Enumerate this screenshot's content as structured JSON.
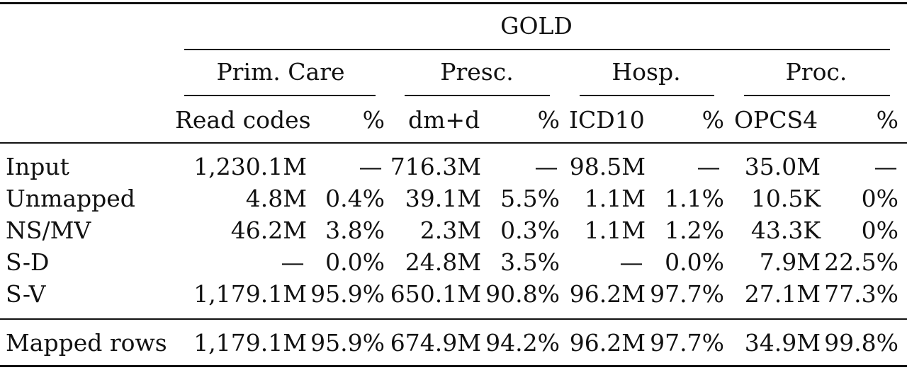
{
  "chart_data": {
    "type": "table",
    "title": "",
    "group_header": "GOLD",
    "source_headers": [
      "Prim. Care",
      "Presc.",
      "Hosp.",
      "Proc."
    ],
    "column_headers": [
      "Read codes",
      "%",
      "dm+d",
      "%",
      "ICD10",
      "%",
      "OPCS4",
      "%"
    ],
    "rows": [
      {
        "label": "Input",
        "cells": [
          "1,230.1M",
          "—",
          "716.3M",
          "—",
          "98.5M",
          "—",
          "35.0M",
          "—"
        ]
      },
      {
        "label": "Unmapped",
        "cells": [
          "4.8M",
          "0.4%",
          "39.1M",
          "5.5%",
          "1.1M",
          "1.1%",
          "10.5K",
          "0%"
        ]
      },
      {
        "label": "NS/MV",
        "cells": [
          "46.2M",
          "3.8%",
          "2.3M",
          "0.3%",
          "1.1M",
          "1.2%",
          "43.3K",
          "0%"
        ]
      },
      {
        "label": "S-D",
        "cells": [
          "—",
          "0.0%",
          "24.8M",
          "3.5%",
          "—",
          "0.0%",
          "7.9M",
          "22.5%"
        ]
      },
      {
        "label": "S-V",
        "cells": [
          "1,179.1M",
          "95.9%",
          "650.1M",
          "90.8%",
          "96.2M",
          "97.7%",
          "27.1M",
          "77.3%"
        ]
      }
    ],
    "total_row": {
      "label": "Mapped rows",
      "cells": [
        "1,179.1M",
        "95.9%",
        "674.9M",
        "94.2%",
        "96.2M",
        "97.7%",
        "34.9M",
        "99.8%"
      ]
    }
  }
}
